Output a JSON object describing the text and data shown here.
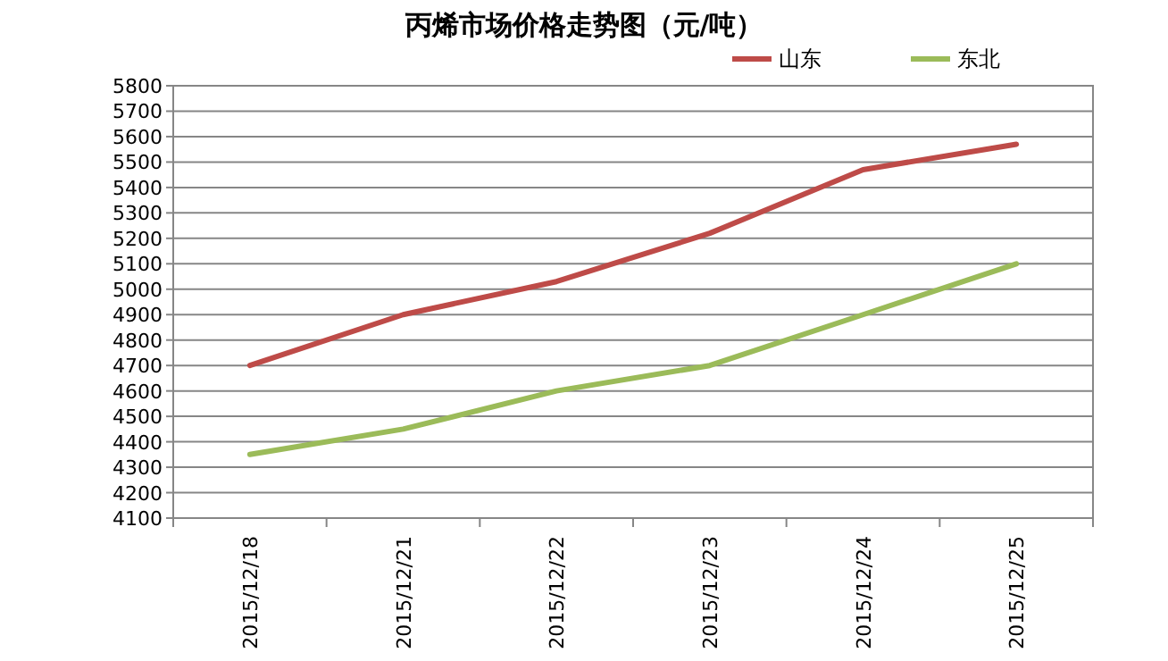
{
  "chart_data": {
    "type": "line",
    "title": "丙烯市场价格走势图（元/吨）",
    "categories": [
      "2015/12/18",
      "2015/12/21",
      "2015/12/22",
      "2015/12/23",
      "2015/12/24",
      "2015/12/25"
    ],
    "series": [
      {
        "name": "山东",
        "color": "#be4b48",
        "values": [
          4700,
          4900,
          5030,
          5220,
          5470,
          5570
        ]
      },
      {
        "name": "东北",
        "color": "#9bbb59",
        "values": [
          4350,
          4450,
          4600,
          4700,
          4900,
          5100
        ]
      }
    ],
    "ylim": [
      4100,
      5800
    ],
    "yticks": [
      4100,
      4200,
      4300,
      4400,
      4500,
      4600,
      4700,
      4800,
      4900,
      5000,
      5100,
      5200,
      5300,
      5400,
      5500,
      5600,
      5700,
      5800
    ],
    "grid": "y",
    "legend": "top right",
    "marker": "none",
    "line_style": "solid"
  }
}
